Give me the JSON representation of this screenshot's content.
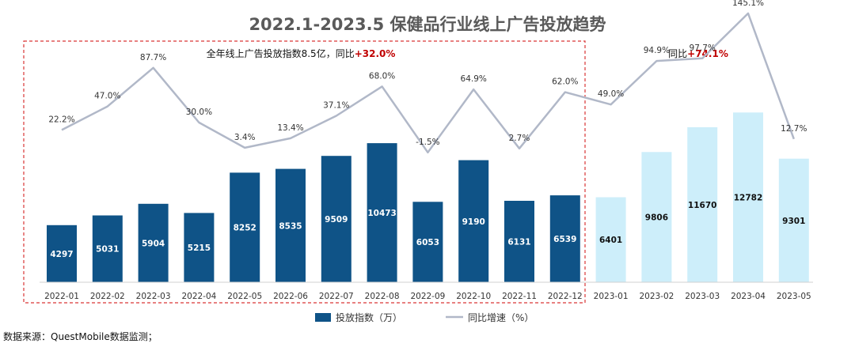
{
  "chart_data": {
    "type": "bar",
    "title": "2022.1-2023.5 保健品行业线上广告投放趋势",
    "categories": [
      "2022-01",
      "2022-02",
      "2022-03",
      "2022-04",
      "2022-05",
      "2022-06",
      "2022-07",
      "2022-08",
      "2022-09",
      "2022-10",
      "2022-11",
      "2022-12",
      "2023-01",
      "2023-02",
      "2023-03",
      "2023-04",
      "2023-05"
    ],
    "series": [
      {
        "name": "投放指数（万）",
        "type": "bar",
        "values": [
          4297,
          5031,
          5904,
          5215,
          8252,
          8535,
          9509,
          10473,
          6053,
          9190,
          6131,
          6539,
          6401,
          9806,
          11670,
          12782,
          9301
        ],
        "value_labels": [
          "4297",
          "5031",
          "5904",
          "5215",
          "8252",
          "8535",
          "9509",
          "10473",
          "6053",
          "9190",
          "6131",
          "6539",
          "6401",
          "9806",
          "11670",
          "12782",
          "9301"
        ]
      },
      {
        "name": "同比增速（%）",
        "type": "line",
        "values": [
          22.2,
          47.0,
          87.7,
          30.0,
          3.4,
          13.4,
          37.1,
          68.0,
          -1.5,
          64.9,
          2.7,
          62.0,
          49.0,
          94.9,
          97.7,
          145.1,
          12.7
        ],
        "value_labels": [
          "22.2%",
          "47.0%",
          "87.7%",
          "30.0%",
          "3.4%",
          "13.4%",
          "37.1%",
          "68.0%",
          "-1.5%",
          "64.9%",
          "2.7%",
          "62.0%",
          "49.0%",
          "94.9%",
          "97.7%",
          "145.1%",
          "12.7%"
        ]
      }
    ],
    "ylim_bar": [
      0,
      13000
    ],
    "ylim_line": [
      -20,
      150
    ],
    "colors": {
      "bar_2022": "#0f5387",
      "bar_2023": "#cdeefa",
      "line": "#b1b8c8",
      "dashed_box": "#d93636",
      "accent_red": "#c00000",
      "title": "#5a5a5a"
    },
    "annotations": {
      "box_2022_prefix": "全年线上广告投放指数8.5亿，同比",
      "box_2022_value": "+32.0%",
      "box_2023_prefix": "同比",
      "box_2023_value": "+74.1%"
    },
    "legend": {
      "bar_label": "投放指数（万）",
      "line_label": "同比增速（%）",
      "placement": "bottom-center"
    },
    "source": "数据来源：QuestMobile数据监测；"
  }
}
